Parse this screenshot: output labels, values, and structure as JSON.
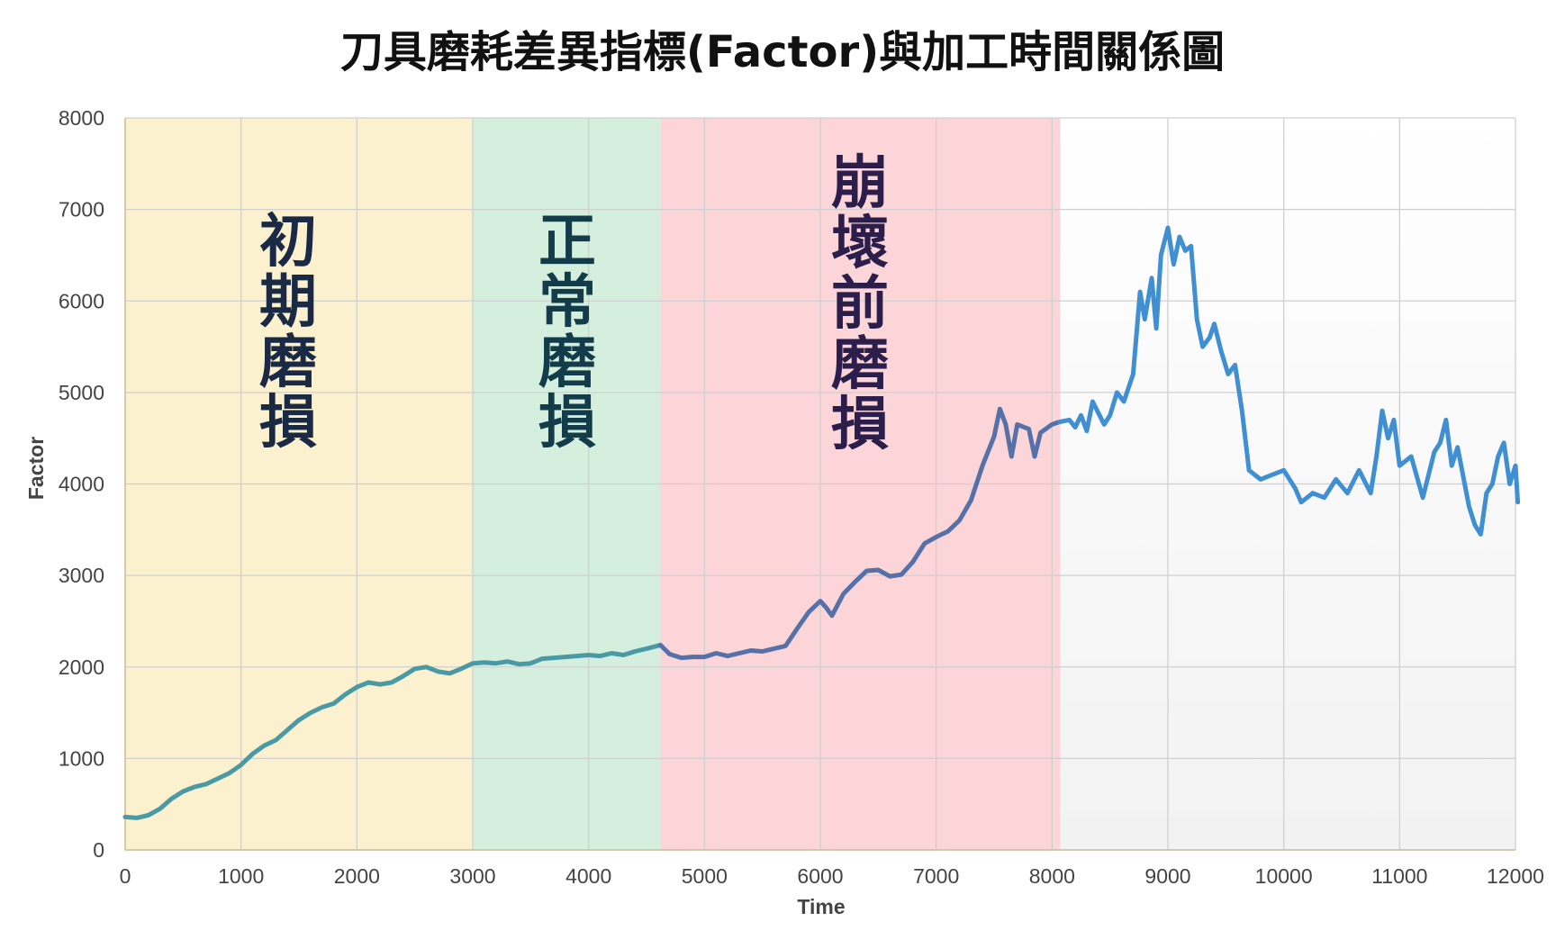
{
  "chart_data": {
    "type": "line",
    "title": "刀具磨耗差異指標(Factor)與加工時間關係圖",
    "xlabel": "Time",
    "ylabel": "Factor",
    "xlim": [
      0,
      12000
    ],
    "ylim": [
      0,
      8000
    ],
    "x_ticks": [
      "0",
      "1000",
      "2000",
      "3000",
      "4000",
      "5000",
      "6000",
      "7000",
      "8000",
      "9000",
      "10000",
      "11000",
      "12000"
    ],
    "y_ticks": [
      "0",
      "1000",
      "2000",
      "3000",
      "4000",
      "5000",
      "6000",
      "7000",
      "8000"
    ],
    "grid": true,
    "regions": [
      {
        "label": "初期磨損",
        "x_start": 0,
        "x_end": 3000,
        "color": "#fbf0cc",
        "label_color": "#1b2a44"
      },
      {
        "label": "正常磨損",
        "x_start": 3000,
        "x_end": 4620,
        "color": "#d3eedd",
        "label_color": "#123c4a"
      },
      {
        "label": "崩壞前磨損",
        "x_start": 4620,
        "x_end": 8070,
        "color": "#fbd3d5",
        "label_color": "#2b1e4a"
      }
    ],
    "series": [
      {
        "color_start": "#4a9aa6",
        "color_mid": "#5670a8",
        "color_end": "#3f8fd2",
        "points": [
          [
            0,
            360
          ],
          [
            100,
            350
          ],
          [
            200,
            380
          ],
          [
            300,
            450
          ],
          [
            400,
            560
          ],
          [
            500,
            640
          ],
          [
            600,
            690
          ],
          [
            700,
            720
          ],
          [
            800,
            780
          ],
          [
            900,
            840
          ],
          [
            1000,
            930
          ],
          [
            1100,
            1050
          ],
          [
            1200,
            1140
          ],
          [
            1300,
            1200
          ],
          [
            1400,
            1310
          ],
          [
            1500,
            1420
          ],
          [
            1600,
            1500
          ],
          [
            1700,
            1560
          ],
          [
            1800,
            1600
          ],
          [
            1900,
            1700
          ],
          [
            2000,
            1780
          ],
          [
            2100,
            1830
          ],
          [
            2200,
            1810
          ],
          [
            2300,
            1830
          ],
          [
            2400,
            1900
          ],
          [
            2500,
            1980
          ],
          [
            2600,
            2000
          ],
          [
            2700,
            1950
          ],
          [
            2800,
            1930
          ],
          [
            2900,
            1980
          ],
          [
            3000,
            2040
          ],
          [
            3100,
            2050
          ],
          [
            3200,
            2040
          ],
          [
            3300,
            2060
          ],
          [
            3400,
            2030
          ],
          [
            3500,
            2040
          ],
          [
            3600,
            2090
          ],
          [
            3700,
            2100
          ],
          [
            3800,
            2110
          ],
          [
            3900,
            2120
          ],
          [
            4000,
            2130
          ],
          [
            4100,
            2120
          ],
          [
            4200,
            2150
          ],
          [
            4300,
            2130
          ],
          [
            4400,
            2170
          ],
          [
            4500,
            2200
          ],
          [
            4620,
            2240
          ],
          [
            4700,
            2140
          ],
          [
            4800,
            2100
          ],
          [
            4900,
            2110
          ],
          [
            5000,
            2110
          ],
          [
            5100,
            2150
          ],
          [
            5200,
            2120
          ],
          [
            5300,
            2150
          ],
          [
            5400,
            2180
          ],
          [
            5500,
            2170
          ],
          [
            5600,
            2200
          ],
          [
            5700,
            2230
          ],
          [
            5800,
            2420
          ],
          [
            5900,
            2600
          ],
          [
            6000,
            2720
          ],
          [
            6050,
            2650
          ],
          [
            6100,
            2560
          ],
          [
            6200,
            2800
          ],
          [
            6300,
            2930
          ],
          [
            6400,
            3050
          ],
          [
            6500,
            3060
          ],
          [
            6600,
            2990
          ],
          [
            6700,
            3010
          ],
          [
            6800,
            3150
          ],
          [
            6900,
            3350
          ],
          [
            7000,
            3420
          ],
          [
            7100,
            3480
          ],
          [
            7200,
            3600
          ],
          [
            7300,
            3820
          ],
          [
            7400,
            4200
          ],
          [
            7500,
            4520
          ],
          [
            7550,
            4820
          ],
          [
            7600,
            4650
          ],
          [
            7650,
            4300
          ],
          [
            7700,
            4650
          ],
          [
            7800,
            4600
          ],
          [
            7850,
            4300
          ],
          [
            7900,
            4560
          ],
          [
            8000,
            4650
          ],
          [
            8070,
            4680
          ],
          [
            8150,
            4700
          ],
          [
            8200,
            4620
          ],
          [
            8250,
            4750
          ],
          [
            8300,
            4580
          ],
          [
            8350,
            4900
          ],
          [
            8450,
            4650
          ],
          [
            8500,
            4750
          ],
          [
            8560,
            5000
          ],
          [
            8620,
            4900
          ],
          [
            8700,
            5200
          ],
          [
            8760,
            6100
          ],
          [
            8800,
            5800
          ],
          [
            8860,
            6250
          ],
          [
            8900,
            5700
          ],
          [
            8940,
            6500
          ],
          [
            9000,
            6800
          ],
          [
            9050,
            6400
          ],
          [
            9100,
            6700
          ],
          [
            9150,
            6550
          ],
          [
            9200,
            6600
          ],
          [
            9250,
            5800
          ],
          [
            9300,
            5500
          ],
          [
            9360,
            5600
          ],
          [
            9400,
            5750
          ],
          [
            9460,
            5450
          ],
          [
            9520,
            5200
          ],
          [
            9580,
            5300
          ],
          [
            9640,
            4800
          ],
          [
            9700,
            4150
          ],
          [
            9800,
            4050
          ],
          [
            9900,
            4100
          ],
          [
            10000,
            4150
          ],
          [
            10100,
            3950
          ],
          [
            10150,
            3800
          ],
          [
            10250,
            3900
          ],
          [
            10350,
            3850
          ],
          [
            10450,
            4050
          ],
          [
            10550,
            3900
          ],
          [
            10650,
            4150
          ],
          [
            10750,
            3900
          ],
          [
            10800,
            4300
          ],
          [
            10850,
            4800
          ],
          [
            10900,
            4500
          ],
          [
            10950,
            4700
          ],
          [
            11000,
            4200
          ],
          [
            11100,
            4300
          ],
          [
            11200,
            3850
          ],
          [
            11300,
            4350
          ],
          [
            11350,
            4450
          ],
          [
            11400,
            4700
          ],
          [
            11450,
            4200
          ],
          [
            11500,
            4400
          ],
          [
            11600,
            3750
          ],
          [
            11650,
            3550
          ],
          [
            11700,
            3450
          ],
          [
            11750,
            3900
          ],
          [
            11800,
            4000
          ],
          [
            11850,
            4300
          ],
          [
            11900,
            4450
          ],
          [
            11950,
            4000
          ],
          [
            12000,
            4200
          ],
          [
            12020,
            3800
          ]
        ]
      }
    ]
  }
}
